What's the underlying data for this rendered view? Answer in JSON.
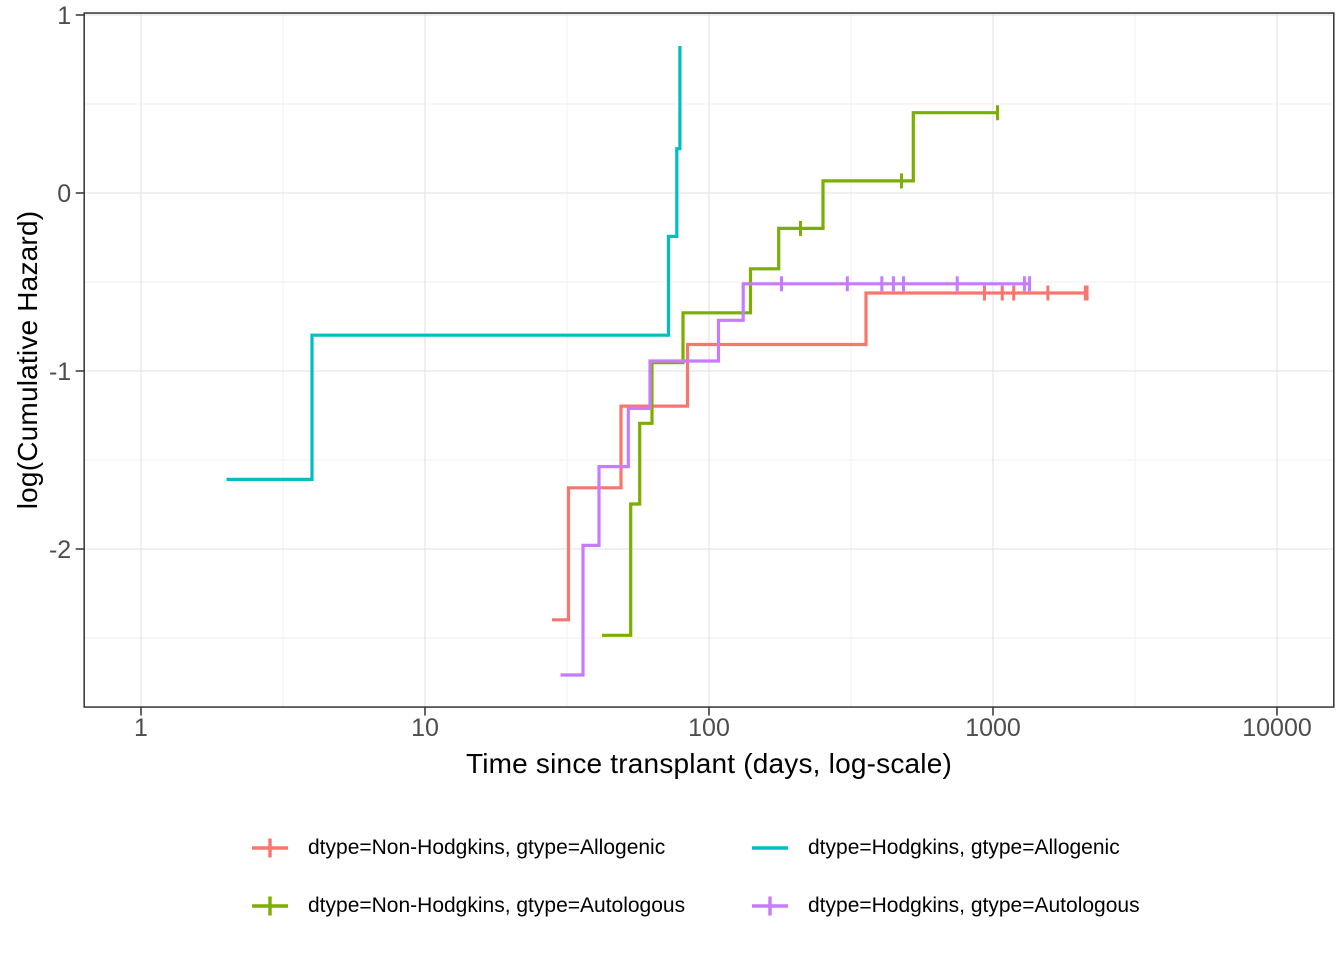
{
  "chart_data": {
    "type": "line",
    "subtype": "step-function (Nelson-Aalen cumulative hazard, log scale)",
    "title": "",
    "xlabel": "Time since transplant (days, log-scale)",
    "ylabel": "log(Cumulative Hazard)",
    "x_scale": "log10",
    "x_ticks": [
      1,
      10,
      100,
      1000,
      10000
    ],
    "x_tick_labels": [
      "1",
      "10",
      "100",
      "1000",
      "10000"
    ],
    "x_minor_ticks": [
      3.1623,
      31.623,
      316.23,
      3162.3
    ],
    "y_ticks": [
      1,
      0,
      -1,
      -2
    ],
    "y_tick_labels": [
      "1",
      "0",
      "-1",
      "-2"
    ],
    "y_minor_ticks": [
      0.5,
      -0.5,
      -1.5,
      -2.5
    ],
    "xlim_log10": [
      -0.2,
      4.2
    ],
    "ylim": [
      -2.888,
      1.011
    ],
    "grid": true,
    "legend_position": "bottom",
    "series": [
      {
        "name": "dtype=Non-Hodgkins, gtype=Allogenic",
        "color": "#F8766D",
        "legend_marker": "plus",
        "steps": [
          [
            28,
            -2.398
          ],
          [
            32,
            -1.656
          ],
          [
            49,
            -1.197
          ],
          [
            84,
            -0.851
          ],
          [
            357,
            -0.562
          ]
        ],
        "end_time": 2144,
        "censor_marks": [
          [
            933,
            -0.562
          ],
          [
            1078,
            -0.562
          ],
          [
            1183,
            -0.562
          ],
          [
            1560,
            -0.562
          ],
          [
            2114,
            -0.562
          ],
          [
            2144,
            -0.562
          ]
        ]
      },
      {
        "name": "dtype=Hodgkins, gtype=Allogenic",
        "color": "#00BFC4",
        "legend_marker": "line",
        "steps": [
          [
            2,
            -1.609
          ],
          [
            4,
            -0.799
          ],
          [
            72,
            -0.244
          ],
          [
            77,
            0.249
          ],
          [
            79,
            0.826
          ]
        ],
        "end_time": 79,
        "censor_marks": []
      },
      {
        "name": "dtype=Non-Hodgkins, gtype=Autologous",
        "color": "#7CAE00",
        "legend_marker": "plus",
        "steps": [
          [
            42,
            -2.485
          ],
          [
            53,
            -1.747
          ],
          [
            57,
            -1.294
          ],
          [
            63,
            -0.953
          ],
          [
            81,
            -0.673
          ],
          [
            140,
            -0.426
          ],
          [
            176,
            -0.199
          ],
          [
            252,
            0.068
          ],
          [
            524,
            0.451
          ]
        ],
        "end_time": 1037,
        "censor_marks": [
          [
            210,
            -0.199
          ],
          [
            476,
            0.068
          ],
          [
            1037,
            0.451
          ]
        ]
      },
      {
        "name": "dtype=Hodgkins, gtype=Autologous",
        "color": "#C77CFF",
        "legend_marker": "plus",
        "steps": [
          [
            30,
            -2.708
          ],
          [
            36,
            -1.98
          ],
          [
            41,
            -1.537
          ],
          [
            52,
            -1.21
          ],
          [
            62,
            -0.944
          ],
          [
            108,
            -0.715
          ],
          [
            132,
            -0.51
          ]
        ],
        "end_time": 1345,
        "censor_marks": [
          [
            180,
            -0.51
          ],
          [
            307,
            -0.51
          ],
          [
            406,
            -0.51
          ],
          [
            446,
            -0.51
          ],
          [
            484,
            -0.51
          ],
          [
            748,
            -0.51
          ],
          [
            1290,
            -0.51
          ],
          [
            1345,
            -0.51
          ]
        ]
      }
    ],
    "colors": {
      "background": "#FFFFFF",
      "panel_background": "#FFFFFF",
      "panel_border": "#333333",
      "grid_major": "#E6E6E6",
      "grid_minor": "#F2F2F2",
      "tick_mark": "#333333",
      "tick_label": "#4D4D4D",
      "axis_title": "#000000",
      "legend_text": "#000000"
    }
  }
}
